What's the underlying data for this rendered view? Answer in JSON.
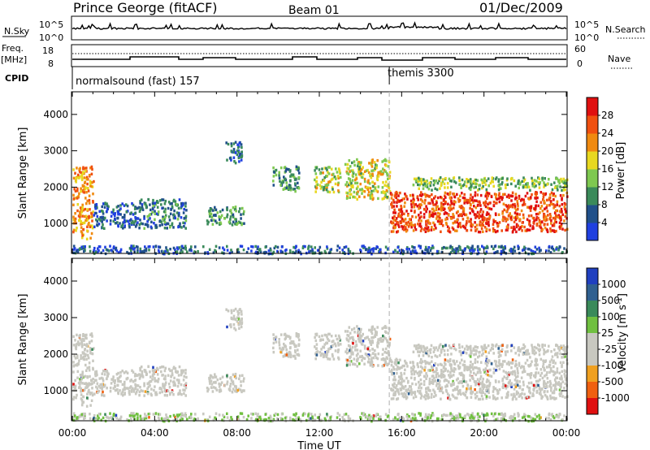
{
  "header": {
    "station": "Prince George (fitACF)",
    "beam": "Beam 01",
    "date": "01/Dec/2009"
  },
  "noise_panel": {
    "left_label": "N.Sky",
    "left_ticks": [
      "10^5",
      "10^0"
    ],
    "right_label": "N.Search",
    "right_ticks": [
      "10^5",
      "10^0"
    ]
  },
  "freq_panel": {
    "left_label_1": "Freq.",
    "left_label_2": "[MHz]",
    "left_ticks": [
      "18",
      "8"
    ],
    "right_label": "Nave",
    "right_ticks": [
      "60",
      "0"
    ]
  },
  "cpid_panel": {
    "label": "CPID",
    "programs": [
      {
        "name": "normalsound (fast) 157",
        "start_hour": 0
      },
      {
        "name": "themis 3300",
        "start_hour": 15.4
      }
    ]
  },
  "axes": {
    "ylabel": "Slant Range [km]",
    "yticks": [
      "1000",
      "2000",
      "3000",
      "4000"
    ],
    "xlabel": "Time UT",
    "xticks": [
      "00:00",
      "04:00",
      "08:00",
      "12:00",
      "16:00",
      "20:00",
      "00:00"
    ]
  },
  "power_colorbar": {
    "label": "Power [dB]",
    "ticks": [
      "4",
      "8",
      "12",
      "16",
      "20",
      "24",
      "28"
    ],
    "colors": [
      "#2040e0",
      "#20508a",
      "#3a8a5a",
      "#7ec850",
      "#e8d820",
      "#f08a10",
      "#f05010",
      "#e01010"
    ]
  },
  "velocity_colorbar": {
    "label": "Velocity [m s",
    "label_sup": "-1",
    "label_end": "]",
    "ticks": [
      "1000",
      "500",
      "100",
      "25",
      "-25",
      "-100",
      "-500",
      "-1000"
    ],
    "colors": [
      "#2040c0",
      "#306090",
      "#3a8a5a",
      "#70c040",
      "#c8c8c0",
      "#c8c8c0",
      "#f0a020",
      "#f06010",
      "#e01010"
    ]
  },
  "chart_data": {
    "type": "heatmap",
    "title": "Prince George (fitACF)  Beam 01  01/Dec/2009",
    "xlabel": "Time UT",
    "ylabel": "Slant Range [km]",
    "xlim_hours": [
      0,
      24
    ],
    "ylim_km": [
      200,
      4600
    ],
    "panels": [
      "Power [dB]",
      "Velocity [m s-1]"
    ],
    "power_range_db": [
      0,
      30
    ],
    "velocity_range_ms": [
      -1000,
      1000
    ],
    "echo_regions": [
      {
        "t": [
          0.0,
          1.0
        ],
        "r": [
          600,
          2600
        ],
        "power": 22,
        "velocity": 0
      },
      {
        "t": [
          1.0,
          3.2
        ],
        "r": [
          900,
          1600
        ],
        "power": 6,
        "velocity": 0
      },
      {
        "t": [
          3.2,
          5.5
        ],
        "r": [
          900,
          1700
        ],
        "power": 8,
        "velocity": 0
      },
      {
        "t": [
          6.5,
          8.3
        ],
        "r": [
          1000,
          1500
        ],
        "power": 10,
        "velocity": 0
      },
      {
        "t": [
          7.4,
          8.2
        ],
        "r": [
          2700,
          3300
        ],
        "power": 5,
        "velocity": 0
      },
      {
        "t": [
          9.7,
          11.0
        ],
        "r": [
          1900,
          2600
        ],
        "power": 10,
        "velocity": 0
      },
      {
        "t": [
          11.7,
          13.0
        ],
        "r": [
          1900,
          2600
        ],
        "power": 16,
        "velocity": 0
      },
      {
        "t": [
          13.2,
          15.4
        ],
        "r": [
          1700,
          2800
        ],
        "power": 17,
        "velocity": 0
      },
      {
        "t": [
          15.4,
          24.0
        ],
        "r": [
          800,
          1900
        ],
        "power": 27,
        "velocity": 0
      },
      {
        "t": [
          16.5,
          24.0
        ],
        "r": [
          1950,
          2300
        ],
        "power": 14,
        "velocity": 0
      },
      {
        "t": [
          0.0,
          24.0
        ],
        "r": [
          200,
          420
        ],
        "power": 6,
        "velocity": 25
      }
    ]
  }
}
